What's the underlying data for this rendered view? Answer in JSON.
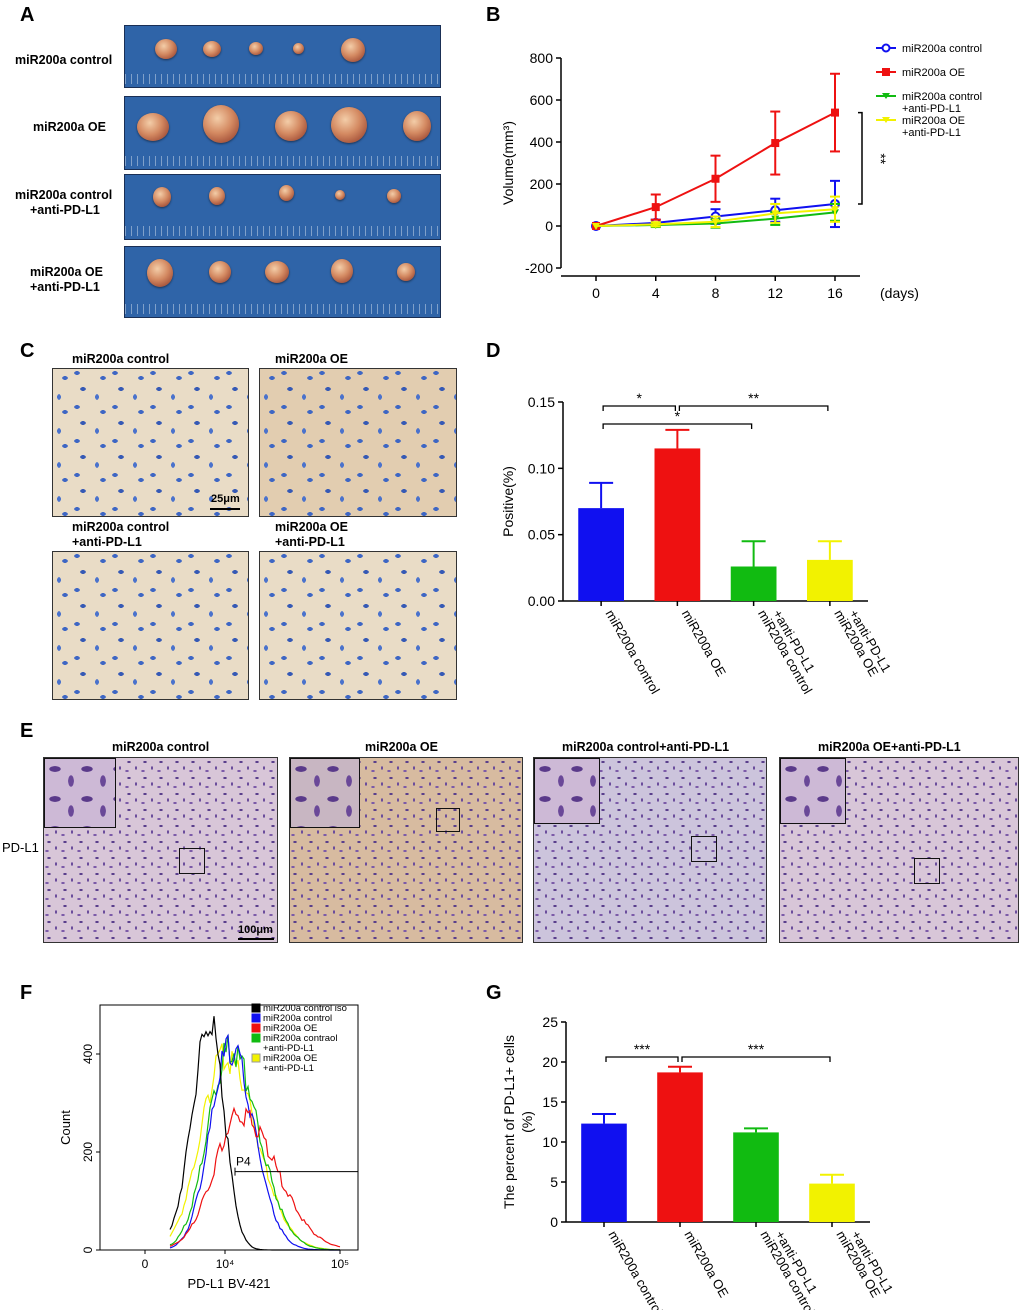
{
  "panels": {
    "A": {
      "letter": "A",
      "rows": [
        {
          "label_line1": "miR200a control",
          "label_line2": ""
        },
        {
          "label_line1": "miR200a OE",
          "label_line2": ""
        },
        {
          "label_line1": "miR200a control",
          "label_line2": "+anti-PD-L1"
        },
        {
          "label_line1": "miR200a OE",
          "label_line2": "+anti-PD-L1"
        }
      ]
    },
    "B": {
      "letter": "B"
    },
    "C": {
      "letter": "C",
      "labels": [
        {
          "line1": "miR200a control",
          "line2": ""
        },
        {
          "line1": "miR200a OE",
          "line2": ""
        },
        {
          "line1": "miR200a control",
          "line2": "+anti-PD-L1"
        },
        {
          "line1": "miR200a OE",
          "line2": "+anti-PD-L1"
        }
      ],
      "scale_bar": "25μm"
    },
    "D": {
      "letter": "D"
    },
    "E": {
      "letter": "E",
      "titles": [
        "miR200a control",
        "miR200a OE",
        "miR200a control+anti-PD-L1",
        "miR200a OE+anti-PD-L1"
      ],
      "row_label": "PD-L1",
      "scale_bar": "100μm"
    },
    "F": {
      "letter": "F"
    },
    "G": {
      "letter": "G"
    }
  },
  "colors": {
    "control": "#1010f0",
    "oe": "#ee1111",
    "control_anti": "#11bb11",
    "oe_anti": "#f2f200",
    "iso": "#000000"
  },
  "chart_data": [
    {
      "id": "B",
      "type": "line",
      "ylabel": "Volume(mm³)",
      "x_unit": "(days)",
      "x": [
        0,
        4,
        8,
        12,
        16
      ],
      "ylim": [
        -200,
        800
      ],
      "yticks": [
        -200,
        0,
        200,
        400,
        600,
        800
      ],
      "series": [
        {
          "name": "miR200a control",
          "color": "#1010f0",
          "marker": "circle",
          "values": [
            0,
            15,
            45,
            75,
            105
          ],
          "errors": [
            0,
            15,
            35,
            55,
            110
          ]
        },
        {
          "name": "miR200a OE",
          "color": "#ee1111",
          "marker": "square",
          "values": [
            0,
            90,
            225,
            395,
            540
          ],
          "errors": [
            0,
            60,
            110,
            150,
            185
          ]
        },
        {
          "name": "miR200a control\n+anti-PD-L1",
          "color": "#11bb11",
          "marker": "triangle-down",
          "values": [
            0,
            5,
            12,
            35,
            65
          ],
          "errors": [
            0,
            10,
            20,
            30,
            40
          ]
        },
        {
          "name": "miR200a OE\n+anti-PD-L1",
          "color": "#f2f200",
          "marker": "triangle-down",
          "values": [
            0,
            8,
            20,
            60,
            80
          ],
          "errors": [
            0,
            10,
            25,
            45,
            60
          ]
        }
      ],
      "significance": "**"
    },
    {
      "id": "D",
      "type": "bar",
      "ylabel": "Positive(%)",
      "categories": [
        "miR200a control",
        "miR200a OE",
        "miR200a control\n+anti-PD-L1",
        "miR200a OE\n+anti-PD-L1"
      ],
      "values": [
        0.07,
        0.115,
        0.026,
        0.031
      ],
      "errors": [
        0.019,
        0.014,
        0.019,
        0.014
      ],
      "colors": [
        "#1010f0",
        "#ee1111",
        "#11bb11",
        "#f2f200"
      ],
      "ylim": [
        0,
        0.15
      ],
      "yticks": [
        "0.00",
        "0.05",
        "0.10",
        "0.15"
      ],
      "significance": [
        {
          "from": 0,
          "to": 1,
          "label": "*"
        },
        {
          "from": 0,
          "to": 2,
          "label": "*"
        },
        {
          "from": 1,
          "to": 3,
          "label": "**"
        }
      ]
    },
    {
      "id": "F",
      "type": "line",
      "xlabel": "PD-L1 BV-421",
      "ylabel": "Count",
      "xticks": [
        "0",
        "10⁴",
        "10⁵"
      ],
      "yticks": [
        "0",
        "200",
        "400"
      ],
      "ylim": [
        0,
        500
      ],
      "gate": "P4",
      "series": [
        {
          "name": "miR200a control iso",
          "color": "#000000",
          "peak": 460
        },
        {
          "name": "miR200a control",
          "color": "#1010f0",
          "peak": 410
        },
        {
          "name": "miR200a OE",
          "color": "#ee1111",
          "peak": 275
        },
        {
          "name": "miR200a contraol\n+anti-PD-L1",
          "color": "#11bb11",
          "peak": 410
        },
        {
          "name": "miR200a OE\n+anti-PD-L1",
          "color": "#f2f200",
          "peak": 395
        }
      ]
    },
    {
      "id": "G",
      "type": "bar",
      "ylabel": "The percent of PD-L1+ cells\n(%)",
      "categories": [
        "miR200a control",
        "miR200a OE",
        "miR200a control\n+anti-PD-L1",
        "miR200a OE\n+anti-PD-L1"
      ],
      "values": [
        12.3,
        18.7,
        11.2,
        4.8
      ],
      "errors": [
        1.2,
        0.7,
        0.5,
        1.1
      ],
      "colors": [
        "#1010f0",
        "#ee1111",
        "#11bb11",
        "#f2f200"
      ],
      "ylim": [
        0,
        25
      ],
      "yticks": [
        "0",
        "5",
        "10",
        "15",
        "20",
        "25"
      ],
      "significance": [
        {
          "from": 0,
          "to": 1,
          "label": "***"
        },
        {
          "from": 1,
          "to": 3,
          "label": "***"
        }
      ]
    }
  ]
}
